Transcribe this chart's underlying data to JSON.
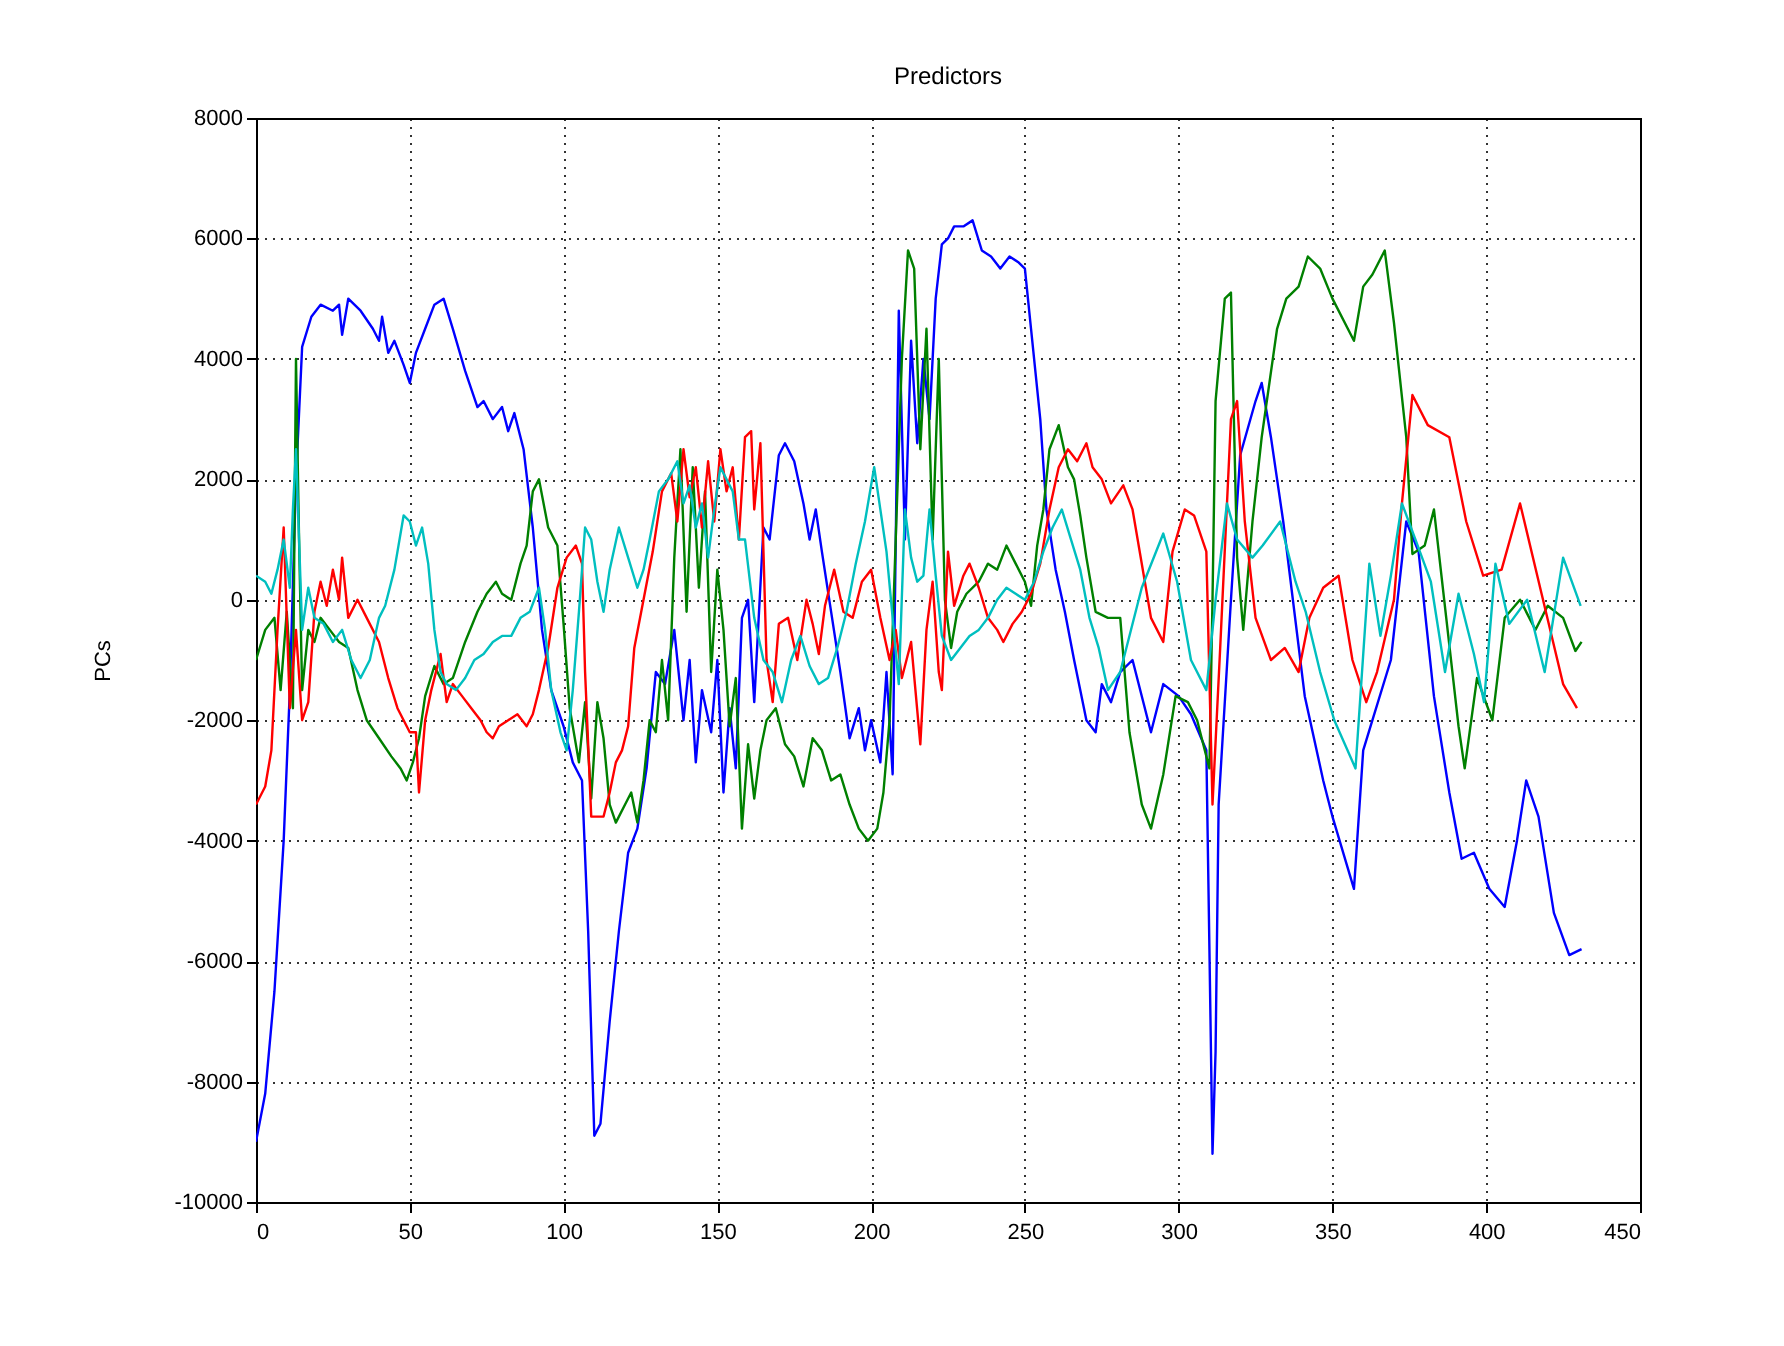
{
  "chart_data": {
    "type": "line",
    "title": "Predictors",
    "ylabel": "PCs",
    "xlim": [
      0,
      450
    ],
    "xticks": [
      0,
      50,
      100,
      150,
      200,
      250,
      300,
      350,
      400,
      450
    ],
    "ylim": [
      -10000,
      8000
    ],
    "yticks": [
      -10000,
      -8000,
      -6000,
      -4000,
      -2000,
      0,
      2000,
      4000,
      6000,
      8000
    ],
    "grid": true,
    "line_style": "solid",
    "series": [
      {
        "color": "#0000ff",
        "x": [
          0,
          3,
          6,
          9,
          11,
          13,
          15,
          18,
          21,
          25,
          27,
          28,
          30,
          34,
          38,
          40,
          41,
          43,
          45,
          48,
          50,
          52,
          55,
          58,
          61,
          64,
          68,
          72,
          74,
          77,
          80,
          82,
          84,
          87,
          90,
          93,
          96,
          100,
          103,
          106,
          108,
          110,
          112,
          115,
          118,
          121,
          124,
          127,
          130,
          133,
          136,
          139,
          141,
          143,
          145,
          148,
          150,
          152,
          154,
          156,
          158,
          160,
          162,
          165,
          167,
          170,
          172,
          175,
          178,
          180,
          182,
          184,
          187,
          190,
          193,
          196,
          198,
          200,
          203,
          205,
          207,
          209,
          211,
          213,
          215,
          217,
          219,
          221,
          223,
          225,
          227,
          230,
          233,
          236,
          239,
          242,
          245,
          248,
          250,
          252,
          255,
          257,
          260,
          263,
          266,
          268,
          270,
          273,
          275,
          278,
          281,
          285,
          291,
          295,
          300,
          304,
          309,
          310,
          311,
          312,
          313,
          317,
          320,
          325,
          327,
          330,
          334,
          341,
          347,
          350,
          357,
          360,
          363,
          369,
          374,
          378,
          383,
          388,
          392,
          396,
          401,
          406,
          410,
          413,
          417,
          422,
          427,
          431
        ],
        "values": [
          -9000,
          -8200,
          -6500,
          -4000,
          -1500,
          2000,
          4200,
          4700,
          4900,
          4800,
          4900,
          4400,
          5000,
          4800,
          4500,
          4300,
          4700,
          4100,
          4300,
          3900,
          3600,
          4100,
          4500,
          4900,
          5000,
          4500,
          3800,
          3200,
          3300,
          3000,
          3200,
          2800,
          3100,
          2500,
          1200,
          -500,
          -1500,
          -2100,
          -2700,
          -3000,
          -5500,
          -8900,
          -8700,
          -7000,
          -5500,
          -4200,
          -3800,
          -2800,
          -1200,
          -1400,
          -500,
          -2000,
          -1000,
          -2700,
          -1500,
          -2200,
          -1000,
          -3200,
          -1800,
          -2800,
          -300,
          0,
          -1700,
          1200,
          1000,
          2400,
          2600,
          2300,
          1600,
          1000,
          1500,
          800,
          -200,
          -1200,
          -2300,
          -1800,
          -2500,
          -2000,
          -2700,
          -1200,
          -2900,
          4800,
          1000,
          4300,
          2600,
          4000,
          3000,
          5000,
          5900,
          6000,
          6200,
          6200,
          6300,
          5800,
          5700,
          5500,
          5700,
          5600,
          5500,
          4500,
          3000,
          1500,
          500,
          -200,
          -1000,
          -1500,
          -2000,
          -2200,
          -1400,
          -1700,
          -1200,
          -1000,
          -2200,
          -1400,
          -1600,
          -1900,
          -2500,
          -5800,
          -9200,
          -7500,
          -3400,
          0,
          2400,
          3300,
          3600,
          2700,
          1300,
          -1600,
          -3000,
          -3600,
          -4800,
          -2500,
          -2000,
          -1000,
          1300,
          800,
          -1600,
          -3200,
          -4300,
          -4200,
          -4800,
          -5100,
          -4000,
          -3000,
          -3600,
          -5200,
          -5900,
          -5800
        ]
      },
      {
        "color": "#008000",
        "x": [
          0,
          3,
          6,
          8,
          10,
          12,
          13,
          14,
          15,
          17,
          19,
          21,
          24,
          27,
          30,
          33,
          36,
          40,
          44,
          47,
          49,
          51,
          53,
          55,
          58,
          61,
          64,
          68,
          72,
          75,
          78,
          80,
          83,
          86,
          88,
          90,
          92,
          95,
          98,
          100,
          102,
          105,
          107,
          109,
          111,
          113,
          115,
          117,
          120,
          122,
          124,
          126,
          128,
          130,
          132,
          134,
          136,
          138,
          140,
          142,
          144,
          146,
          148,
          150,
          152,
          154,
          156,
          158,
          160,
          162,
          164,
          166,
          169,
          172,
          175,
          178,
          181,
          184,
          187,
          190,
          193,
          196,
          199,
          202,
          204,
          206,
          208,
          210,
          212,
          214,
          216,
          218,
          220,
          222,
          224,
          226,
          228,
          231,
          235,
          238,
          241,
          244,
          247,
          250,
          252,
          254,
          256,
          258,
          261,
          264,
          266,
          268,
          270,
          273,
          277,
          281,
          284,
          288,
          291,
          295,
          299,
          303,
          306,
          310,
          311,
          312,
          315,
          317,
          319,
          321,
          324,
          327,
          332,
          335,
          339,
          342,
          346,
          350,
          357,
          360,
          363,
          367,
          370,
          374,
          376,
          380,
          383,
          387,
          391,
          393,
          397,
          402,
          406,
          411,
          416,
          420,
          425,
          429,
          431
        ],
        "values": [
          -1000,
          -500,
          -300,
          -1500,
          -200,
          -1800,
          4000,
          1000,
          -1500,
          -500,
          -700,
          -300,
          -500,
          -700,
          -800,
          -1500,
          -2000,
          -2300,
          -2600,
          -2800,
          -3000,
          -2700,
          -2300,
          -1600,
          -1100,
          -1400,
          -1300,
          -700,
          -200,
          100,
          300,
          100,
          0,
          600,
          900,
          1800,
          2000,
          1200,
          900,
          -400,
          -1800,
          -2700,
          -1700,
          -3300,
          -1700,
          -2300,
          -3400,
          -3700,
          -3400,
          -3200,
          -3700,
          -3000,
          -2000,
          -2200,
          -1000,
          -2000,
          700,
          2500,
          -200,
          2200,
          200,
          1800,
          -1200,
          500,
          -500,
          -2100,
          -1300,
          -3800,
          -2400,
          -3300,
          -2500,
          -2000,
          -1800,
          -2400,
          -2600,
          -3100,
          -2300,
          -2500,
          -3000,
          -2900,
          -3400,
          -3800,
          -4000,
          -3800,
          -3200,
          -2000,
          1000,
          4000,
          5800,
          5500,
          2500,
          4500,
          1000,
          4000,
          0,
          -800,
          -200,
          100,
          300,
          600,
          500,
          900,
          600,
          300,
          -100,
          900,
          1500,
          2500,
          2900,
          2200,
          2000,
          1400,
          700,
          -200,
          -300,
          -300,
          -2200,
          -3400,
          -3800,
          -2900,
          -1600,
          -1700,
          -2000,
          -2800,
          0,
          3300,
          5000,
          5100,
          700,
          -500,
          1300,
          2700,
          4500,
          5000,
          5200,
          5700,
          5500,
          5000,
          4300,
          5200,
          5400,
          5800,
          4600,
          2700,
          760,
          900,
          1500,
          -300,
          -2100,
          -2800,
          -1300,
          -2000,
          -300,
          0,
          -500,
          -100,
          -300,
          -850,
          -700
        ]
      },
      {
        "color": "#ff0000",
        "x": [
          0,
          3,
          5,
          7,
          9,
          11,
          13,
          15,
          17,
          19,
          21,
          23,
          25,
          27,
          28,
          30,
          33,
          36,
          40,
          43,
          46,
          48,
          50,
          52,
          53,
          55,
          57,
          60,
          62,
          64,
          67,
          70,
          73,
          75,
          77,
          79,
          82,
          85,
          88,
          90,
          92,
          95,
          98,
          101,
          104,
          106,
          107,
          109,
          111,
          113,
          115,
          117,
          119,
          121,
          123,
          126,
          129,
          132,
          135,
          137,
          139,
          141,
          143,
          145,
          147,
          149,
          151,
          153,
          155,
          157,
          159,
          161,
          162,
          164,
          166,
          168,
          170,
          173,
          176,
          179,
          181,
          183,
          185,
          188,
          191,
          194,
          197,
          200,
          203,
          206,
          208,
          210,
          213,
          216,
          218,
          220,
          222,
          223,
          225,
          227,
          230,
          232,
          235,
          238,
          241,
          243,
          246,
          249,
          252,
          255,
          258,
          261,
          264,
          267,
          270,
          272,
          275,
          278,
          282,
          285,
          291,
          295,
          298,
          302,
          305,
          309,
          311,
          313.5,
          317,
          319,
          321.5,
          325,
          330,
          334.5,
          339,
          342.5,
          347,
          352,
          356.5,
          361,
          364.5,
          370,
          372.6,
          376,
          381,
          388,
          393.5,
          399,
          405,
          411,
          418,
          425,
          429.5
        ],
        "values": [
          -3400,
          -3100,
          -2500,
          -500,
          1200,
          -1800,
          -500,
          -2000,
          -1700,
          -200,
          300,
          -100,
          500,
          0,
          700,
          -300,
          0,
          -300,
          -700,
          -1300,
          -1800,
          -2000,
          -2200,
          -2200,
          -3200,
          -2000,
          -1500,
          -900,
          -1700,
          -1400,
          -1600,
          -1800,
          -2000,
          -2200,
          -2300,
          -2100,
          -2000,
          -1900,
          -2100,
          -1900,
          -1500,
          -800,
          200,
          700,
          900,
          600,
          -1200,
          -3600,
          -3600,
          -3600,
          -3200,
          -2700,
          -2500,
          -2100,
          -800,
          0,
          800,
          1800,
          2100,
          1300,
          2500,
          1700,
          2200,
          1200,
          2300,
          1300,
          2500,
          1800,
          2200,
          1000,
          2700,
          2800,
          1500,
          2600,
          -1000,
          -1700,
          -400,
          -300,
          -1000,
          0,
          -400,
          -900,
          -100,
          500,
          -200,
          -300,
          300,
          500,
          -300,
          -1000,
          -500,
          -1300,
          -700,
          -2400,
          -500,
          300,
          -1200,
          -1500,
          800,
          -100,
          400,
          600,
          200,
          -300,
          -500,
          -700,
          -400,
          -200,
          100,
          600,
          1500,
          2200,
          2500,
          2300,
          2600,
          2200,
          2000,
          1600,
          1900,
          1500,
          -300,
          -700,
          800,
          1500,
          1400,
          800,
          -3400,
          -800,
          3000,
          3300,
          1300,
          -300,
          -1000,
          -800,
          -1200,
          -300,
          200,
          400,
          -1000,
          -1700,
          -1200,
          0,
          1600,
          3400,
          2900,
          2700,
          1300,
          400,
          500,
          1600,
          100,
          -1400,
          -1800
        ]
      },
      {
        "color": "#00bfbf",
        "x": [
          0,
          3,
          5,
          7,
          9,
          11,
          12,
          13,
          14,
          15,
          17,
          19,
          22,
          25,
          28,
          31,
          34,
          37,
          40,
          42,
          45,
          48,
          50,
          52,
          54,
          56,
          58,
          60,
          62,
          65,
          68,
          71,
          74,
          77,
          80,
          83,
          86,
          89,
          92,
          94,
          96,
          99,
          101,
          103,
          105,
          107,
          109,
          111,
          113,
          115,
          118,
          121,
          124,
          126,
          128,
          131,
          134,
          137,
          139,
          141,
          143,
          145,
          147,
          149,
          151,
          153,
          155,
          157,
          159,
          162,
          165,
          168,
          171,
          174,
          177,
          180,
          183,
          186,
          189,
          192,
          195,
          198,
          201,
          203,
          205,
          207,
          209,
          211,
          213,
          215,
          217,
          219,
          221,
          223,
          226,
          229,
          232,
          235,
          238,
          241,
          244,
          247,
          250,
          253,
          256,
          259,
          262,
          265,
          268,
          271,
          274,
          277,
          281,
          288,
          295,
          299.5,
          304,
          309,
          312,
          315.7,
          319,
          324,
          327.3,
          333,
          338,
          341.3,
          346,
          350.6,
          357.5,
          362,
          365.6,
          369,
          372.6,
          377,
          382,
          386.6,
          391,
          396,
          399.3,
          403,
          407.5,
          413.3,
          419,
          425,
          430.7
        ],
        "values": [
          400,
          300,
          100,
          500,
          1000,
          200,
          1500,
          2500,
          1000,
          -500,
          200,
          -300,
          -400,
          -700,
          -500,
          -1000,
          -1300,
          -1000,
          -300,
          -100,
          500,
          1400,
          1300,
          900,
          1200,
          600,
          -500,
          -1200,
          -1400,
          -1500,
          -1300,
          -1000,
          -900,
          -700,
          -600,
          -600,
          -300,
          -200,
          200,
          -500,
          -1500,
          -2200,
          -2500,
          -1500,
          -200,
          1200,
          1000,
          300,
          -200,
          500,
          1200,
          700,
          200,
          500,
          1000,
          1800,
          2000,
          2300,
          1600,
          1900,
          1200,
          1600,
          700,
          1500,
          2200,
          2000,
          1800,
          1000,
          1000,
          -300,
          -1000,
          -1200,
          -1700,
          -1000,
          -600,
          -1100,
          -1400,
          -1300,
          -800,
          -200,
          600,
          1300,
          2200,
          1500,
          800,
          -300,
          -1400,
          1500,
          700,
          300,
          400,
          1500,
          400,
          -600,
          -1000,
          -800,
          -600,
          -500,
          -300,
          0,
          200,
          100,
          0,
          300,
          800,
          1200,
          1500,
          1000,
          500,
          -300,
          -800,
          -1500,
          -1200,
          200,
          1100,
          300,
          -1000,
          -1500,
          0,
          1600,
          1000,
          700,
          900,
          1300,
          300,
          -200,
          -1200,
          -2000,
          -2800,
          600,
          -600,
          400,
          1600,
          1000,
          300,
          -1200,
          100,
          -900,
          -1700,
          600,
          -400,
          0,
          -1200,
          700,
          -100
        ]
      }
    ]
  }
}
